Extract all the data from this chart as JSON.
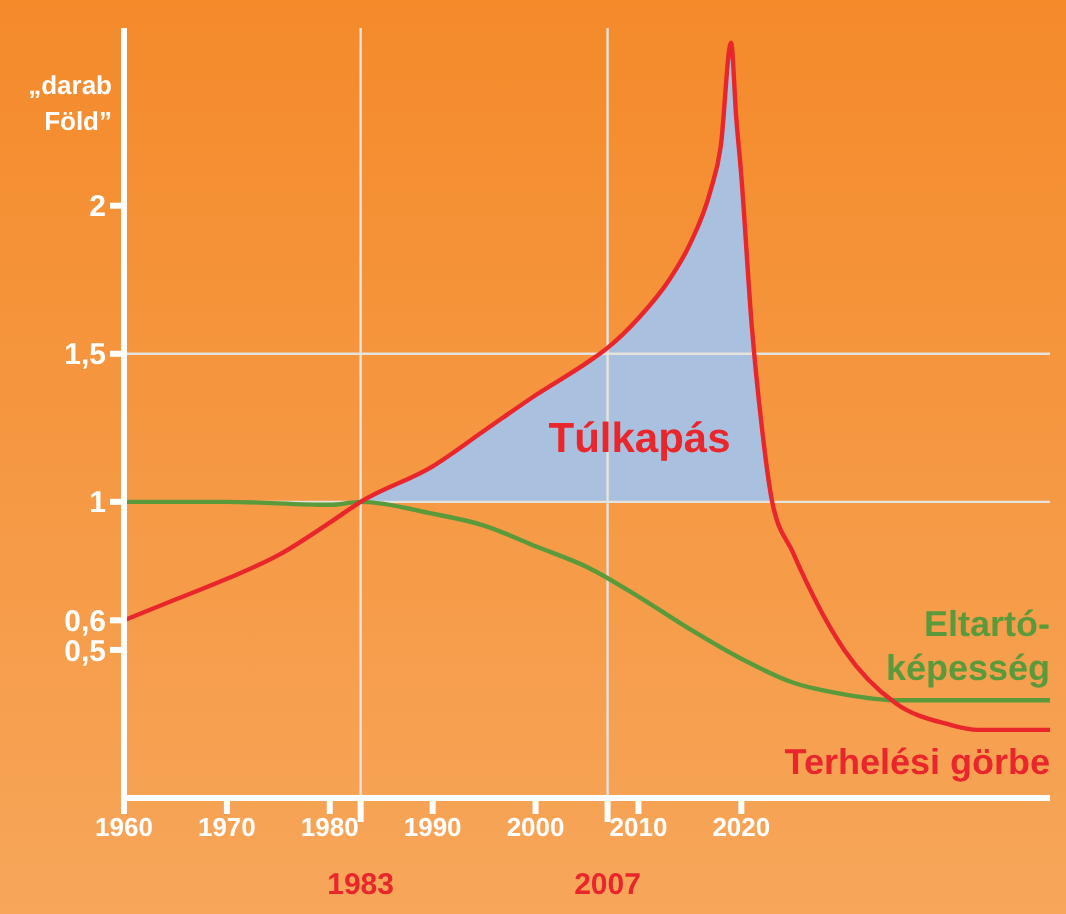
{
  "chart_data": {
    "type": "line",
    "ylabel": "„darab Föld”",
    "xlim": [
      1960,
      2050
    ],
    "xticks": [
      1960,
      1970,
      1980,
      1990,
      2000,
      2010,
      2020
    ],
    "ylim": [
      0,
      2.6
    ],
    "yticks": [
      {
        "value": 0.5,
        "label": "0,5"
      },
      {
        "value": 0.6,
        "label": "0,6"
      },
      {
        "value": 1,
        "label": "1"
      },
      {
        "value": 1.5,
        "label": "1,5"
      },
      {
        "value": 2,
        "label": "2"
      }
    ],
    "grid": false,
    "legend": false,
    "marker": "none",
    "series": [
      {
        "name": "Túlkapás",
        "type": "area",
        "color": "#a9c1df",
        "x": [
          1983,
          1990,
          1995,
          2000,
          2005,
          2007,
          2010,
          2013,
          2015,
          2017,
          2018,
          2019,
          2019.5,
          2020,
          2021,
          2022,
          2023
        ],
        "values": [
          1,
          1.12,
          1.24,
          1.36,
          1.47,
          1.52,
          1.62,
          1.75,
          1.87,
          2.05,
          2.2,
          2.55,
          2.3,
          2.1,
          1.6,
          1.25,
          1
        ]
      },
      {
        "name": "Eltartó-képesség",
        "color": "#5a9a3a",
        "x": [
          1960,
          1970,
          1980,
          1983,
          1990,
          1995,
          2000,
          2005,
          2010,
          2015,
          2020,
          2025,
          2030,
          2035,
          2040,
          2050
        ],
        "values": [
          1,
          1,
          0.99,
          1,
          0.96,
          0.92,
          0.85,
          0.78,
          0.68,
          0.57,
          0.47,
          0.39,
          0.35,
          0.33,
          0.33,
          0.33
        ]
      },
      {
        "name": "Terhelési görbe",
        "color": "#e8262b",
        "x": [
          1960,
          1965,
          1970,
          1975,
          1980,
          1983,
          1990,
          1995,
          2000,
          2005,
          2007,
          2010,
          2013,
          2015,
          2017,
          2018,
          2019,
          2019.5,
          2020,
          2021,
          2022,
          2023,
          2025,
          2030,
          2035,
          2040,
          2043,
          2050
        ],
        "values": [
          0.6,
          0.67,
          0.74,
          0.82,
          0.93,
          1,
          1.12,
          1.24,
          1.36,
          1.47,
          1.52,
          1.62,
          1.75,
          1.87,
          2.05,
          2.2,
          2.55,
          2.3,
          2.1,
          1.6,
          1.25,
          1,
          0.83,
          0.5,
          0.32,
          0.25,
          0.23,
          0.23
        ]
      }
    ],
    "ref_lines": [
      {
        "axis": "x",
        "value": 1983,
        "label": "1983"
      },
      {
        "axis": "x",
        "value": 2007,
        "label": "2007"
      },
      {
        "axis": "y",
        "value": 1.5,
        "label": null
      },
      {
        "axis": "y",
        "value": 1,
        "label": null
      }
    ]
  }
}
